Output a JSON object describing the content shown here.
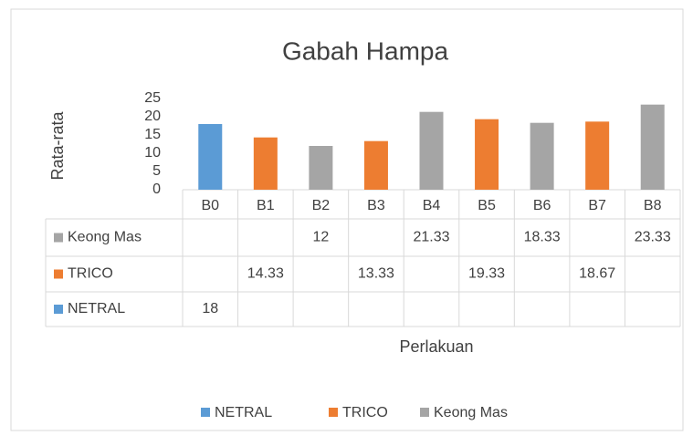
{
  "chart_data": {
    "type": "bar",
    "title": "Gabah Hampa",
    "y_label": "Rata-rata",
    "x_label": "Perlakuan",
    "categories": [
      "B0",
      "B1",
      "B2",
      "B3",
      "B4",
      "B5",
      "B6",
      "B7",
      "B8"
    ],
    "series": [
      {
        "name": "NETRAL",
        "color": "#5b9bd5",
        "values": [
          18,
          null,
          null,
          null,
          null,
          null,
          null,
          null,
          null
        ]
      },
      {
        "name": "TRICO",
        "color": "#ed7d31",
        "values": [
          null,
          14.33,
          null,
          13.33,
          null,
          19.33,
          null,
          18.67,
          null
        ]
      },
      {
        "name": "Keong Mas",
        "color": "#a5a5a5",
        "values": [
          null,
          null,
          12,
          null,
          21.33,
          null,
          18.33,
          null,
          23.33
        ]
      }
    ],
    "ylim": [
      0,
      25
    ],
    "yticks": [
      0,
      5,
      10,
      15,
      20,
      25
    ],
    "legend": "bottom"
  }
}
